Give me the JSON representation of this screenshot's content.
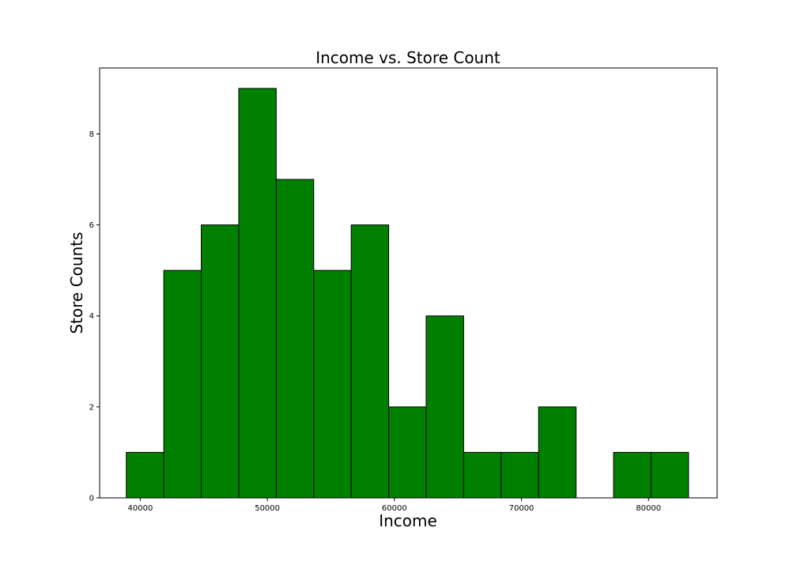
{
  "chart_data": {
    "type": "bar",
    "title": "Income vs. Store Count",
    "xlabel": "Income",
    "ylabel": "Store Counts",
    "bar_color": "#008000",
    "edge_color": "#000000",
    "xlim": [
      36800,
      85400
    ],
    "ylim": [
      0,
      9.45
    ],
    "bin_start": 38900,
    "bin_width": 2950,
    "values": [
      1,
      5,
      6,
      9,
      7,
      5,
      6,
      2,
      4,
      1,
      1,
      2,
      0,
      1,
      1
    ],
    "xticks": [
      40000,
      50000,
      60000,
      70000,
      80000
    ],
    "yticks": [
      0,
      2,
      4,
      6,
      8
    ],
    "grid": false
  }
}
